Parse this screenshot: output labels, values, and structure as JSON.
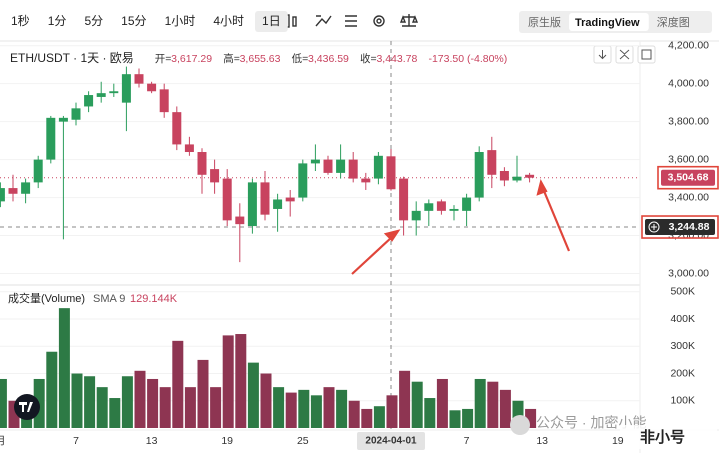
{
  "toolbar": {
    "intervals": [
      "1秒",
      "1分",
      "5分",
      "15分",
      "1小时",
      "4小时",
      "1日"
    ],
    "active_interval_index": 6,
    "views": [
      "原生版",
      "TradingView",
      "深度图"
    ],
    "active_view_index": 1
  },
  "legend": {
    "items": [
      {
        "label": "开=",
        "value": "3,617.29"
      },
      {
        "label": "高=",
        "value": "3,655.63"
      },
      {
        "label": "低=",
        "value": "3,436.59"
      },
      {
        "label": "收=",
        "value": "3,443.78"
      }
    ],
    "change": "-173.50 (-4.80%)"
  },
  "watermark": [
    "公众号 · 加密小能",
    "非小号"
  ],
  "chart_data": {
    "type": "candlestick",
    "title": "ETH/USDT · 1天 · 欧易",
    "categories": [
      "月",
      null,
      null,
      null,
      null,
      null,
      "7",
      null,
      null,
      null,
      null,
      null,
      "13",
      null,
      null,
      null,
      null,
      null,
      "19",
      null,
      null,
      null,
      null,
      null,
      "25",
      null,
      null,
      null,
      null,
      null,
      null,
      "2024-04-01",
      null,
      null,
      null,
      null,
      null,
      "7",
      null,
      null,
      null,
      null,
      null,
      "13",
      null,
      null,
      null,
      null,
      null,
      "19"
    ],
    "open": [
      3380,
      3450,
      3420,
      3480,
      3600,
      3800,
      3810,
      3880,
      3930,
      3950,
      3900,
      4050,
      4000,
      3970,
      3850,
      3680,
      3640,
      3550,
      3500,
      3300,
      3250,
      3480,
      3340,
      3400,
      3400,
      3580,
      3600,
      3530,
      3600,
      3500,
      3500,
      3617.29,
      3500,
      3280,
      3330,
      3380,
      3330,
      3330,
      3400,
      3650,
      3540,
      3490,
      3520,
      null,
      null,
      null,
      null,
      null,
      null,
      null
    ],
    "high": [
      3480,
      3520,
      3500,
      3620,
      3830,
      3830,
      3900,
      3960,
      4010,
      4000,
      4090,
      4080,
      4010,
      4000,
      3880,
      3720,
      3660,
      3600,
      3550,
      3370,
      3500,
      3540,
      3420,
      3440,
      3600,
      3680,
      3620,
      3680,
      3640,
      3530,
      3640,
      3655.63,
      3510,
      3380,
      3390,
      3390,
      3360,
      3420,
      3670,
      3720,
      3560,
      3620,
      3530,
      null,
      null,
      null,
      null,
      null,
      null,
      null
    ],
    "low": [
      3350,
      3380,
      3370,
      3450,
      3580,
      3180,
      3780,
      3850,
      3900,
      3930,
      3750,
      3980,
      3950,
      3820,
      3650,
      3620,
      3420,
      3420,
      3250,
      3060,
      3210,
      3280,
      3220,
      3300,
      3380,
      3540,
      3520,
      3500,
      3480,
      3440,
      3470,
      3436.59,
      3200,
      3200,
      3250,
      3310,
      3280,
      3250,
      3380,
      3450,
      3460,
      3480,
      3480,
      null,
      null,
      null,
      null,
      null,
      null,
      null
    ],
    "close": [
      3450,
      3420,
      3480,
      3600,
      3820,
      3820,
      3870,
      3940,
      3950,
      3960,
      4050,
      4000,
      3960,
      3850,
      3680,
      3640,
      3520,
      3480,
      3280,
      3260,
      3480,
      3310,
      3390,
      3380,
      3580,
      3600,
      3530,
      3600,
      3500,
      3480,
      3620,
      3443.78,
      3280,
      3330,
      3370,
      3330,
      3340,
      3400,
      3640,
      3520,
      3490,
      3510,
      3504.68,
      null,
      null,
      null,
      null,
      null,
      null,
      null
    ],
    "up_color": "#2a9d5c",
    "down_color": "#c8435f",
    "ylim": [
      2950,
      4230
    ],
    "yticks": [
      {
        "value": 3000,
        "label": "3,000.00"
      },
      {
        "value": 3200,
        "label": "3,200.00"
      },
      {
        "value": 3400,
        "label": "3,400.00"
      },
      {
        "value": 3600,
        "label": "3,600.00"
      },
      {
        "value": 3800,
        "label": "3,800.00"
      },
      {
        "value": 4000,
        "label": "4,000.00"
      },
      {
        "value": 4200,
        "label": "4,200.00"
      }
    ],
    "grid": true,
    "last_price": {
      "value": 3504.68,
      "label": "3,504.68"
    },
    "crosshair": {
      "index": 31,
      "value": 3244.88,
      "label": "3,244.88"
    },
    "volume": {
      "title": "成交量(Volume)",
      "sma_label": "SMA 9",
      "sma_value": "129.144K",
      "values": [
        180000,
        100000,
        110000,
        180000,
        280000,
        440000,
        200000,
        190000,
        150000,
        110000,
        190000,
        210000,
        180000,
        150000,
        320000,
        150000,
        250000,
        150000,
        340000,
        345000,
        240000,
        200000,
        150000,
        130000,
        140000,
        120000,
        150000,
        140000,
        100000,
        70000,
        80000,
        120000,
        210000,
        170000,
        110000,
        180000,
        65000,
        70000,
        180000,
        170000,
        140000,
        100000,
        70000,
        null,
        null,
        null,
        null,
        null,
        null,
        null
      ],
      "up_color": "#2d7a45",
      "down_color": "#8e3552",
      "ylim": [
        0,
        525000
      ],
      "yticks": [
        {
          "value": 100000,
          "label": "100K"
        },
        {
          "value": 200000,
          "label": "200K"
        },
        {
          "value": 300000,
          "label": "300K"
        },
        {
          "value": 400000,
          "label": "400K"
        },
        {
          "value": 500000,
          "label": "500K"
        }
      ]
    }
  }
}
